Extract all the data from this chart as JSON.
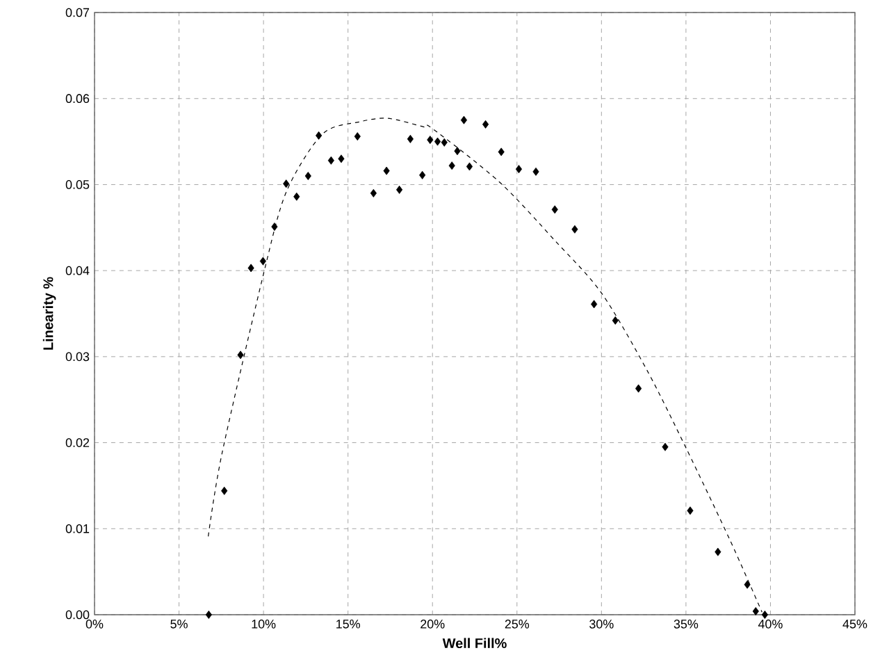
{
  "chart_data": {
    "type": "scatter",
    "xlabel": "Well Fill%",
    "ylabel": "Linearity %",
    "xlim": [
      0,
      45
    ],
    "xticks": [
      {
        "value": 0,
        "label": "0%"
      },
      {
        "value": 5,
        "label": "5%"
      },
      {
        "value": 10,
        "label": "10%"
      },
      {
        "value": 15,
        "label": "15%"
      },
      {
        "value": 20,
        "label": "20%"
      },
      {
        "value": 25,
        "label": "25%"
      },
      {
        "value": 30,
        "label": "30%"
      },
      {
        "value": 35,
        "label": "35%"
      },
      {
        "value": 40,
        "label": "40%"
      },
      {
        "value": 45,
        "label": "45%"
      }
    ],
    "ylim": [
      0,
      0.07
    ],
    "yticks": [
      {
        "value": 0,
        "label": "0.00"
      },
      {
        "value": 0.01,
        "label": "0.01"
      },
      {
        "value": 0.02,
        "label": "0.02"
      },
      {
        "value": 0.03,
        "label": "0.03"
      },
      {
        "value": 0.04,
        "label": "0.04"
      },
      {
        "value": 0.05,
        "label": "0.05"
      },
      {
        "value": 0.06,
        "label": "0.06"
      },
      {
        "value": 0.07,
        "label": "0.07"
      }
    ],
    "grid": true,
    "series": [
      {
        "color": "#000000",
        "marker": "diamond",
        "x": [
          6.76,
          7.68,
          8.64,
          9.26,
          9.97,
          10.65,
          11.34,
          11.96,
          12.64,
          13.27,
          14.0,
          14.6,
          15.56,
          16.51,
          17.28,
          18.04,
          18.69,
          19.4,
          19.86,
          20.3,
          20.7,
          21.15,
          21.47,
          21.86,
          22.19,
          23.14,
          24.07,
          25.11,
          26.12,
          27.24,
          28.42,
          29.56,
          30.82,
          32.19,
          33.77,
          35.25,
          36.89,
          38.63,
          39.13,
          39.67
        ],
        "values": [
          0.0,
          0.0144,
          0.0302,
          0.0403,
          0.0411,
          0.0451,
          0.0501,
          0.0486,
          0.051,
          0.0557,
          0.0528,
          0.053,
          0.0556,
          0.049,
          0.0516,
          0.0494,
          0.0553,
          0.0511,
          0.0552,
          0.055,
          0.0549,
          0.0522,
          0.0539,
          0.0575,
          0.0521,
          0.057,
          0.0538,
          0.0518,
          0.0515,
          0.0471,
          0.0448,
          0.0361,
          0.0342,
          0.0263,
          0.0195,
          0.0121,
          0.0073,
          0.0035,
          0.0004,
          0.0
        ]
      },
      {
        "type": "line",
        "color": "#000000",
        "marker": "none",
        "line_style": "dashed",
        "x": [
          6.73,
          7.55,
          10.0,
          11.36,
          13.5,
          15.7,
          17.36,
          19.5,
          20.0,
          23.96,
          27.24,
          30.0,
          32.7,
          35.0,
          37.6,
          39.5
        ],
        "values": [
          0.0091,
          0.0188,
          0.0396,
          0.0492,
          0.0559,
          0.0573,
          0.0577,
          0.0567,
          0.0565,
          0.0503,
          0.0435,
          0.0374,
          0.0284,
          0.0194,
          0.0087,
          0.0003
        ]
      }
    ]
  }
}
